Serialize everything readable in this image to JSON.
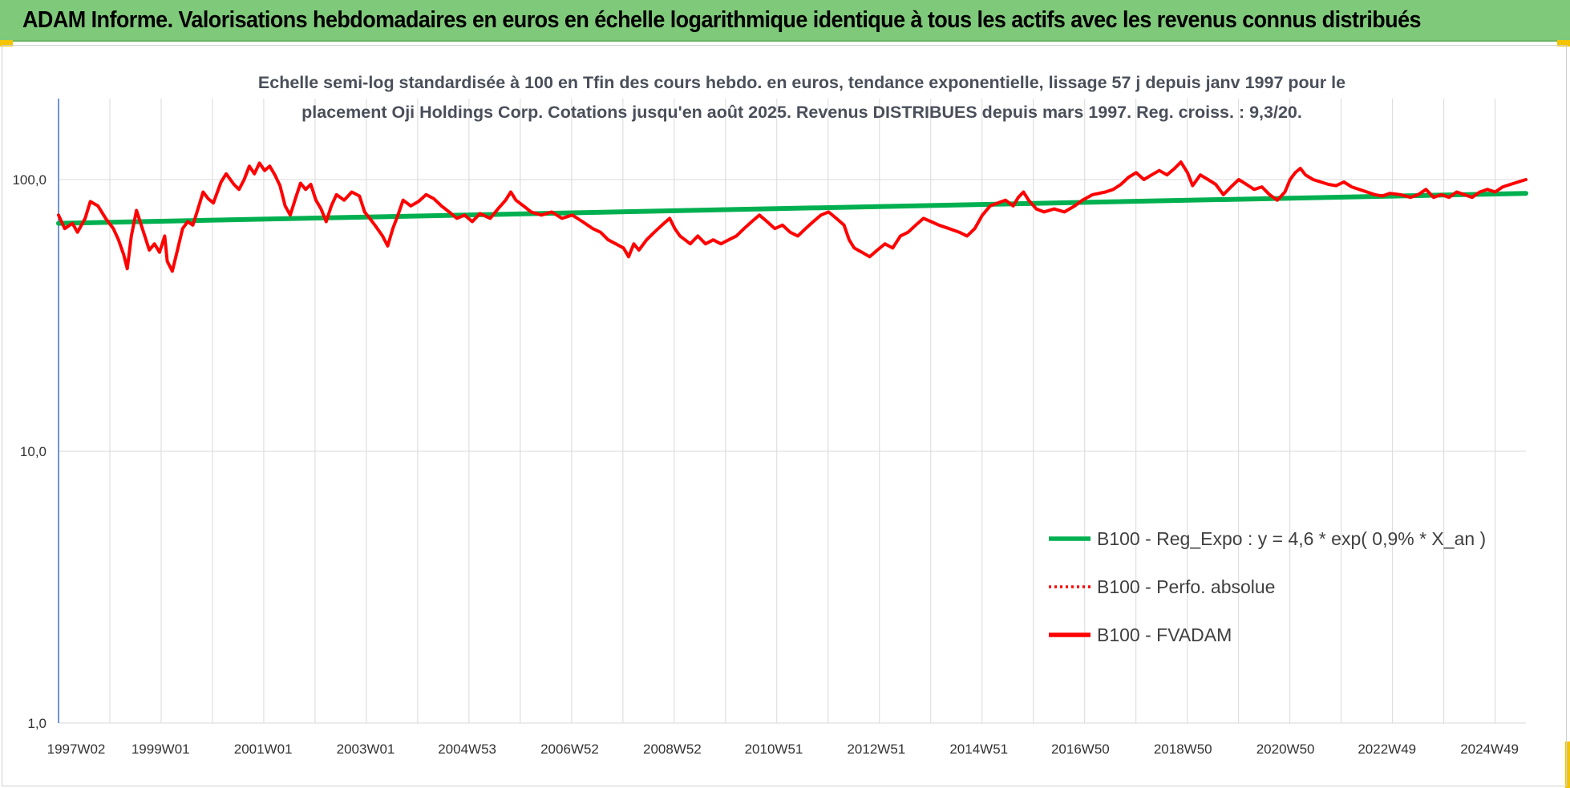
{
  "banner": {
    "title": "ADAM Informe. Valorisations hebdomadaires en euros en échelle logarithmique identique à tous les actifs avec les revenus connus distribués"
  },
  "chart_data": {
    "type": "line",
    "title_line1": "Echelle semi-log standardisée à 100 en Tfin des cours hebdo. en euros, tendance exponentielle, lissage 57 j depuis janv 1997 pour le",
    "title_line2": "placement Oji Holdings Corp. Cotations jusqu'en août 2025. Revenus DISTRIBUES depuis mars 1997. Reg. croiss. : 9,3/20.",
    "y_scale": "log",
    "ylim": [
      1,
      200
    ],
    "grid": true,
    "legend_position": "right-bottom",
    "y_ticks": [
      {
        "value": 1,
        "label": "1,0"
      },
      {
        "value": 10,
        "label": "10,0"
      },
      {
        "value": 100,
        "label": "100,0"
      }
    ],
    "x_range": [
      1997.03,
      2025.65
    ],
    "x_ticks": [
      {
        "x": 1997.03,
        "label": "1997W02"
      },
      {
        "x": 1999.02,
        "label": "1999W01"
      },
      {
        "x": 2001.02,
        "label": "2001W01"
      },
      {
        "x": 2003.02,
        "label": "2003W01"
      },
      {
        "x": 2005.0,
        "label": "2004W53"
      },
      {
        "x": 2007.0,
        "label": "2006W52"
      },
      {
        "x": 2009.0,
        "label": "2008W52"
      },
      {
        "x": 2010.98,
        "label": "2010W51"
      },
      {
        "x": 2012.98,
        "label": "2012W51"
      },
      {
        "x": 2014.98,
        "label": "2014W51"
      },
      {
        "x": 2016.96,
        "label": "2016W50"
      },
      {
        "x": 2018.96,
        "label": "2018W50"
      },
      {
        "x": 2020.96,
        "label": "2020W50"
      },
      {
        "x": 2022.94,
        "label": "2022W49"
      },
      {
        "x": 2024.94,
        "label": "2024W49"
      }
    ],
    "series": [
      {
        "name": "B100 - Reg_Expo : y = 4,6 * exp( 0,9% *  X_an )",
        "color": "#00b050",
        "style": "solid",
        "points": [
          [
            1997.03,
            69
          ],
          [
            2025.65,
            89
          ]
        ]
      },
      {
        "name": "B100 - Perfo. absolue",
        "color": "#ff0000",
        "style": "dotted",
        "points": []
      },
      {
        "name": "B100 - FVADAM",
        "color": "#ff0000",
        "style": "solid",
        "points": [
          [
            1997.03,
            74
          ],
          [
            1997.15,
            66
          ],
          [
            1997.3,
            69
          ],
          [
            1997.4,
            64
          ],
          [
            1997.55,
            72
          ],
          [
            1997.65,
            83
          ],
          [
            1997.8,
            80
          ],
          [
            1997.95,
            72
          ],
          [
            1998.1,
            66
          ],
          [
            1998.2,
            60
          ],
          [
            1998.3,
            53
          ],
          [
            1998.37,
            47
          ],
          [
            1998.45,
            62
          ],
          [
            1998.55,
            77
          ],
          [
            1998.7,
            63
          ],
          [
            1998.8,
            55
          ],
          [
            1998.9,
            58
          ],
          [
            1999.0,
            54
          ],
          [
            1999.1,
            62
          ],
          [
            1999.15,
            50
          ],
          [
            1999.25,
            46
          ],
          [
            1999.35,
            55
          ],
          [
            1999.45,
            66
          ],
          [
            1999.55,
            70
          ],
          [
            1999.65,
            68
          ],
          [
            1999.75,
            78
          ],
          [
            1999.85,
            90
          ],
          [
            1999.95,
            85
          ],
          [
            2000.05,
            82
          ],
          [
            2000.2,
            98
          ],
          [
            2000.3,
            105
          ],
          [
            2000.45,
            96
          ],
          [
            2000.55,
            92
          ],
          [
            2000.65,
            100
          ],
          [
            2000.75,
            112
          ],
          [
            2000.85,
            105
          ],
          [
            2000.95,
            115
          ],
          [
            2001.05,
            108
          ],
          [
            2001.15,
            112
          ],
          [
            2001.25,
            104
          ],
          [
            2001.35,
            95
          ],
          [
            2001.45,
            80
          ],
          [
            2001.55,
            74
          ],
          [
            2001.65,
            85
          ],
          [
            2001.75,
            97
          ],
          [
            2001.85,
            92
          ],
          [
            2001.95,
            96
          ],
          [
            2002.05,
            84
          ],
          [
            2002.15,
            78
          ],
          [
            2002.25,
            70
          ],
          [
            2002.35,
            80
          ],
          [
            2002.45,
            88
          ],
          [
            2002.6,
            84
          ],
          [
            2002.75,
            90
          ],
          [
            2002.9,
            87
          ],
          [
            2003.0,
            76
          ],
          [
            2003.1,
            72
          ],
          [
            2003.2,
            68
          ],
          [
            2003.35,
            62
          ],
          [
            2003.45,
            57
          ],
          [
            2003.55,
            66
          ],
          [
            2003.65,
            74
          ],
          [
            2003.75,
            84
          ],
          [
            2003.9,
            80
          ],
          [
            2004.05,
            83
          ],
          [
            2004.2,
            88
          ],
          [
            2004.35,
            85
          ],
          [
            2004.5,
            80
          ],
          [
            2004.65,
            76
          ],
          [
            2004.8,
            72
          ],
          [
            2004.95,
            74
          ],
          [
            2005.1,
            70
          ],
          [
            2005.25,
            75
          ],
          [
            2005.45,
            72
          ],
          [
            2005.6,
            78
          ],
          [
            2005.75,
            84
          ],
          [
            2005.85,
            90
          ],
          [
            2005.95,
            84
          ],
          [
            2006.1,
            80
          ],
          [
            2006.25,
            76
          ],
          [
            2006.45,
            74
          ],
          [
            2006.65,
            76
          ],
          [
            2006.85,
            72
          ],
          [
            2007.05,
            74
          ],
          [
            2007.25,
            70
          ],
          [
            2007.45,
            66
          ],
          [
            2007.6,
            64
          ],
          [
            2007.75,
            60
          ],
          [
            2007.9,
            58
          ],
          [
            2008.05,
            56
          ],
          [
            2008.15,
            52
          ],
          [
            2008.25,
            58
          ],
          [
            2008.35,
            55
          ],
          [
            2008.5,
            60
          ],
          [
            2008.65,
            64
          ],
          [
            2008.8,
            68
          ],
          [
            2008.95,
            72
          ],
          [
            2009.05,
            66
          ],
          [
            2009.15,
            62
          ],
          [
            2009.25,
            60
          ],
          [
            2009.35,
            58
          ],
          [
            2009.5,
            62
          ],
          [
            2009.65,
            58
          ],
          [
            2009.8,
            60
          ],
          [
            2009.95,
            58
          ],
          [
            2010.1,
            60
          ],
          [
            2010.25,
            62
          ],
          [
            2010.4,
            66
          ],
          [
            2010.55,
            70
          ],
          [
            2010.7,
            74
          ],
          [
            2010.85,
            70
          ],
          [
            2011.0,
            66
          ],
          [
            2011.15,
            68
          ],
          [
            2011.3,
            64
          ],
          [
            2011.45,
            62
          ],
          [
            2011.6,
            66
          ],
          [
            2011.75,
            70
          ],
          [
            2011.9,
            74
          ],
          [
            2012.05,
            76
          ],
          [
            2012.2,
            72
          ],
          [
            2012.35,
            68
          ],
          [
            2012.45,
            60
          ],
          [
            2012.55,
            56
          ],
          [
            2012.7,
            54
          ],
          [
            2012.85,
            52
          ],
          [
            2013.0,
            55
          ],
          [
            2013.15,
            58
          ],
          [
            2013.3,
            56
          ],
          [
            2013.45,
            62
          ],
          [
            2013.6,
            64
          ],
          [
            2013.75,
            68
          ],
          [
            2013.9,
            72
          ],
          [
            2014.05,
            70
          ],
          [
            2014.2,
            68
          ],
          [
            2014.4,
            66
          ],
          [
            2014.6,
            64
          ],
          [
            2014.75,
            62
          ],
          [
            2014.9,
            66
          ],
          [
            2015.05,
            74
          ],
          [
            2015.2,
            80
          ],
          [
            2015.35,
            82
          ],
          [
            2015.5,
            84
          ],
          [
            2015.65,
            80
          ],
          [
            2015.75,
            86
          ],
          [
            2015.85,
            90
          ],
          [
            2015.95,
            84
          ],
          [
            2016.1,
            78
          ],
          [
            2016.25,
            76
          ],
          [
            2016.45,
            78
          ],
          [
            2016.65,
            76
          ],
          [
            2016.85,
            80
          ],
          [
            2017.0,
            84
          ],
          [
            2017.2,
            88
          ],
          [
            2017.45,
            90
          ],
          [
            2017.6,
            92
          ],
          [
            2017.75,
            96
          ],
          [
            2017.9,
            102
          ],
          [
            2018.05,
            106
          ],
          [
            2018.2,
            100
          ],
          [
            2018.35,
            104
          ],
          [
            2018.5,
            108
          ],
          [
            2018.65,
            104
          ],
          [
            2018.8,
            110
          ],
          [
            2018.92,
            116
          ],
          [
            2019.05,
            106
          ],
          [
            2019.15,
            95
          ],
          [
            2019.3,
            104
          ],
          [
            2019.45,
            100
          ],
          [
            2019.6,
            96
          ],
          [
            2019.75,
            88
          ],
          [
            2019.9,
            94
          ],
          [
            2020.05,
            100
          ],
          [
            2020.2,
            96
          ],
          [
            2020.35,
            92
          ],
          [
            2020.5,
            94
          ],
          [
            2020.65,
            88
          ],
          [
            2020.8,
            84
          ],
          [
            2020.95,
            90
          ],
          [
            2021.05,
            100
          ],
          [
            2021.15,
            106
          ],
          [
            2021.25,
            110
          ],
          [
            2021.35,
            104
          ],
          [
            2021.5,
            100
          ],
          [
            2021.65,
            98
          ],
          [
            2021.8,
            96
          ],
          [
            2021.95,
            95
          ],
          [
            2022.1,
            98
          ],
          [
            2022.25,
            94
          ],
          [
            2022.4,
            92
          ],
          [
            2022.55,
            90
          ],
          [
            2022.7,
            88
          ],
          [
            2022.85,
            87
          ],
          [
            2023.0,
            89
          ],
          [
            2023.2,
            88
          ],
          [
            2023.4,
            86
          ],
          [
            2023.55,
            88
          ],
          [
            2023.7,
            92
          ],
          [
            2023.85,
            86
          ],
          [
            2024.0,
            88
          ],
          [
            2024.15,
            86
          ],
          [
            2024.3,
            90
          ],
          [
            2024.45,
            88
          ],
          [
            2024.6,
            86
          ],
          [
            2024.75,
            90
          ],
          [
            2024.9,
            92
          ],
          [
            2025.05,
            90
          ],
          [
            2025.2,
            94
          ],
          [
            2025.35,
            96
          ],
          [
            2025.5,
            98
          ],
          [
            2025.65,
            100
          ]
        ]
      }
    ]
  }
}
